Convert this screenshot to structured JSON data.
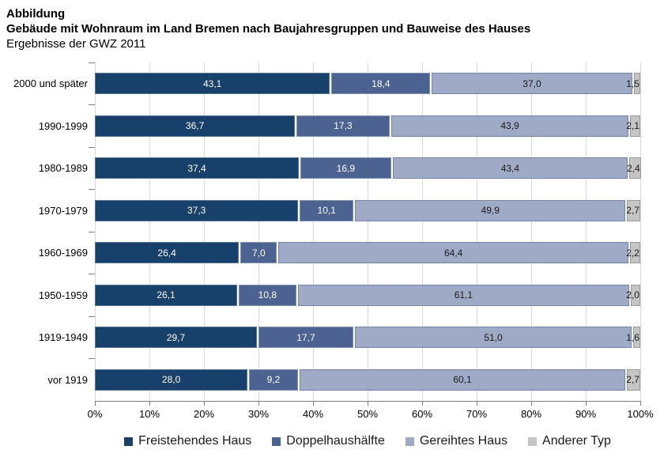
{
  "header": {
    "label": "Abbildung",
    "title": "Gebäude mit Wohnraum im Land Bremen nach Baujahresgruppen und Bauweise des Hauses",
    "subtitle": "Ergebnisse der GWZ 2011"
  },
  "chart_data": {
    "type": "bar",
    "orientation": "horizontal",
    "stacked": true,
    "grid": true,
    "legend_position": "bottom",
    "xlim": [
      0,
      100
    ],
    "xlabel": "",
    "ylabel": "",
    "categories": [
      "2000 und später",
      "1990-1999",
      "1980-1989",
      "1970-1979",
      "1960-1969",
      "1950-1959",
      "1919-1949",
      "vor 1919"
    ],
    "series": [
      {
        "name": "Freistehendes Haus",
        "color": "#17406b",
        "values": [
          43.1,
          36.7,
          37.4,
          37.3,
          26.4,
          26.1,
          29.7,
          28.0
        ]
      },
      {
        "name": "Doppelhaushälfte",
        "color": "#4c6391",
        "values": [
          18.4,
          17.3,
          16.9,
          10.1,
          7.0,
          10.8,
          17.7,
          9.2
        ]
      },
      {
        "name": "Gereihtes Haus",
        "color": "#9eaac6",
        "values": [
          37.0,
          43.9,
          43.4,
          49.9,
          64.4,
          61.1,
          51.0,
          60.1
        ]
      },
      {
        "name": "Anderer Typ",
        "color": "#c6c4c4",
        "values": [
          1.5,
          2.1,
          2.4,
          2.7,
          2.2,
          2.0,
          1.6,
          2.7
        ]
      }
    ],
    "rows": [
      {
        "label": "2000 und später",
        "segments": [
          {
            "value": 43.1,
            "label": "43,1"
          },
          {
            "value": 18.4,
            "label": "18,4"
          },
          {
            "value": 37.0,
            "label": "37,0"
          },
          {
            "value": 1.5,
            "label": "1,5"
          }
        ]
      },
      {
        "label": "1990-1999",
        "segments": [
          {
            "value": 36.7,
            "label": "36,7"
          },
          {
            "value": 17.3,
            "label": "17,3"
          },
          {
            "value": 43.9,
            "label": "43,9"
          },
          {
            "value": 2.1,
            "label": "2,1"
          }
        ]
      },
      {
        "label": "1980-1989",
        "segments": [
          {
            "value": 37.4,
            "label": "37,4"
          },
          {
            "value": 16.9,
            "label": "16,9"
          },
          {
            "value": 43.4,
            "label": "43,4"
          },
          {
            "value": 2.4,
            "label": "2,4"
          }
        ]
      },
      {
        "label": "1970-1979",
        "segments": [
          {
            "value": 37.3,
            "label": "37,3"
          },
          {
            "value": 10.1,
            "label": "10,1"
          },
          {
            "value": 49.9,
            "label": "49,9"
          },
          {
            "value": 2.7,
            "label": "2,7"
          }
        ]
      },
      {
        "label": "1960-1969",
        "segments": [
          {
            "value": 26.4,
            "label": "26,4"
          },
          {
            "value": 7.0,
            "label": "7,0"
          },
          {
            "value": 64.4,
            "label": "64,4"
          },
          {
            "value": 2.2,
            "label": "2,2"
          }
        ]
      },
      {
        "label": "1950-1959",
        "segments": [
          {
            "value": 26.1,
            "label": "26,1"
          },
          {
            "value": 10.8,
            "label": "10,8"
          },
          {
            "value": 61.1,
            "label": "61,1"
          },
          {
            "value": 2.0,
            "label": "2,0"
          }
        ]
      },
      {
        "label": "1919-1949",
        "segments": [
          {
            "value": 29.7,
            "label": "29,7"
          },
          {
            "value": 17.7,
            "label": "17,7"
          },
          {
            "value": 51.0,
            "label": "51,0"
          },
          {
            "value": 1.6,
            "label": "1,6"
          }
        ]
      },
      {
        "label": "vor 1919",
        "segments": [
          {
            "value": 28.0,
            "label": "28,0"
          },
          {
            "value": 9.2,
            "label": "9,2"
          },
          {
            "value": 60.1,
            "label": "60,1"
          },
          {
            "value": 2.7,
            "label": "2,7"
          }
        ]
      }
    ],
    "xticks": [
      {
        "label": "0%",
        "pos": 0
      },
      {
        "label": "10%",
        "pos": 10
      },
      {
        "label": "20%",
        "pos": 20
      },
      {
        "label": "30%",
        "pos": 30
      },
      {
        "label": "40%",
        "pos": 40
      },
      {
        "label": "50%",
        "pos": 50
      },
      {
        "label": "60%",
        "pos": 60
      },
      {
        "label": "70%",
        "pos": 70
      },
      {
        "label": "80%",
        "pos": 80
      },
      {
        "label": "90%",
        "pos": 90
      },
      {
        "label": "100%",
        "pos": 100
      }
    ],
    "colors": {
      "grid": "#d9d9d9",
      "axis": "#7f7f7f",
      "bar_label_dark": "#ffffff",
      "bar_label_light": "#1a1a1a"
    }
  }
}
